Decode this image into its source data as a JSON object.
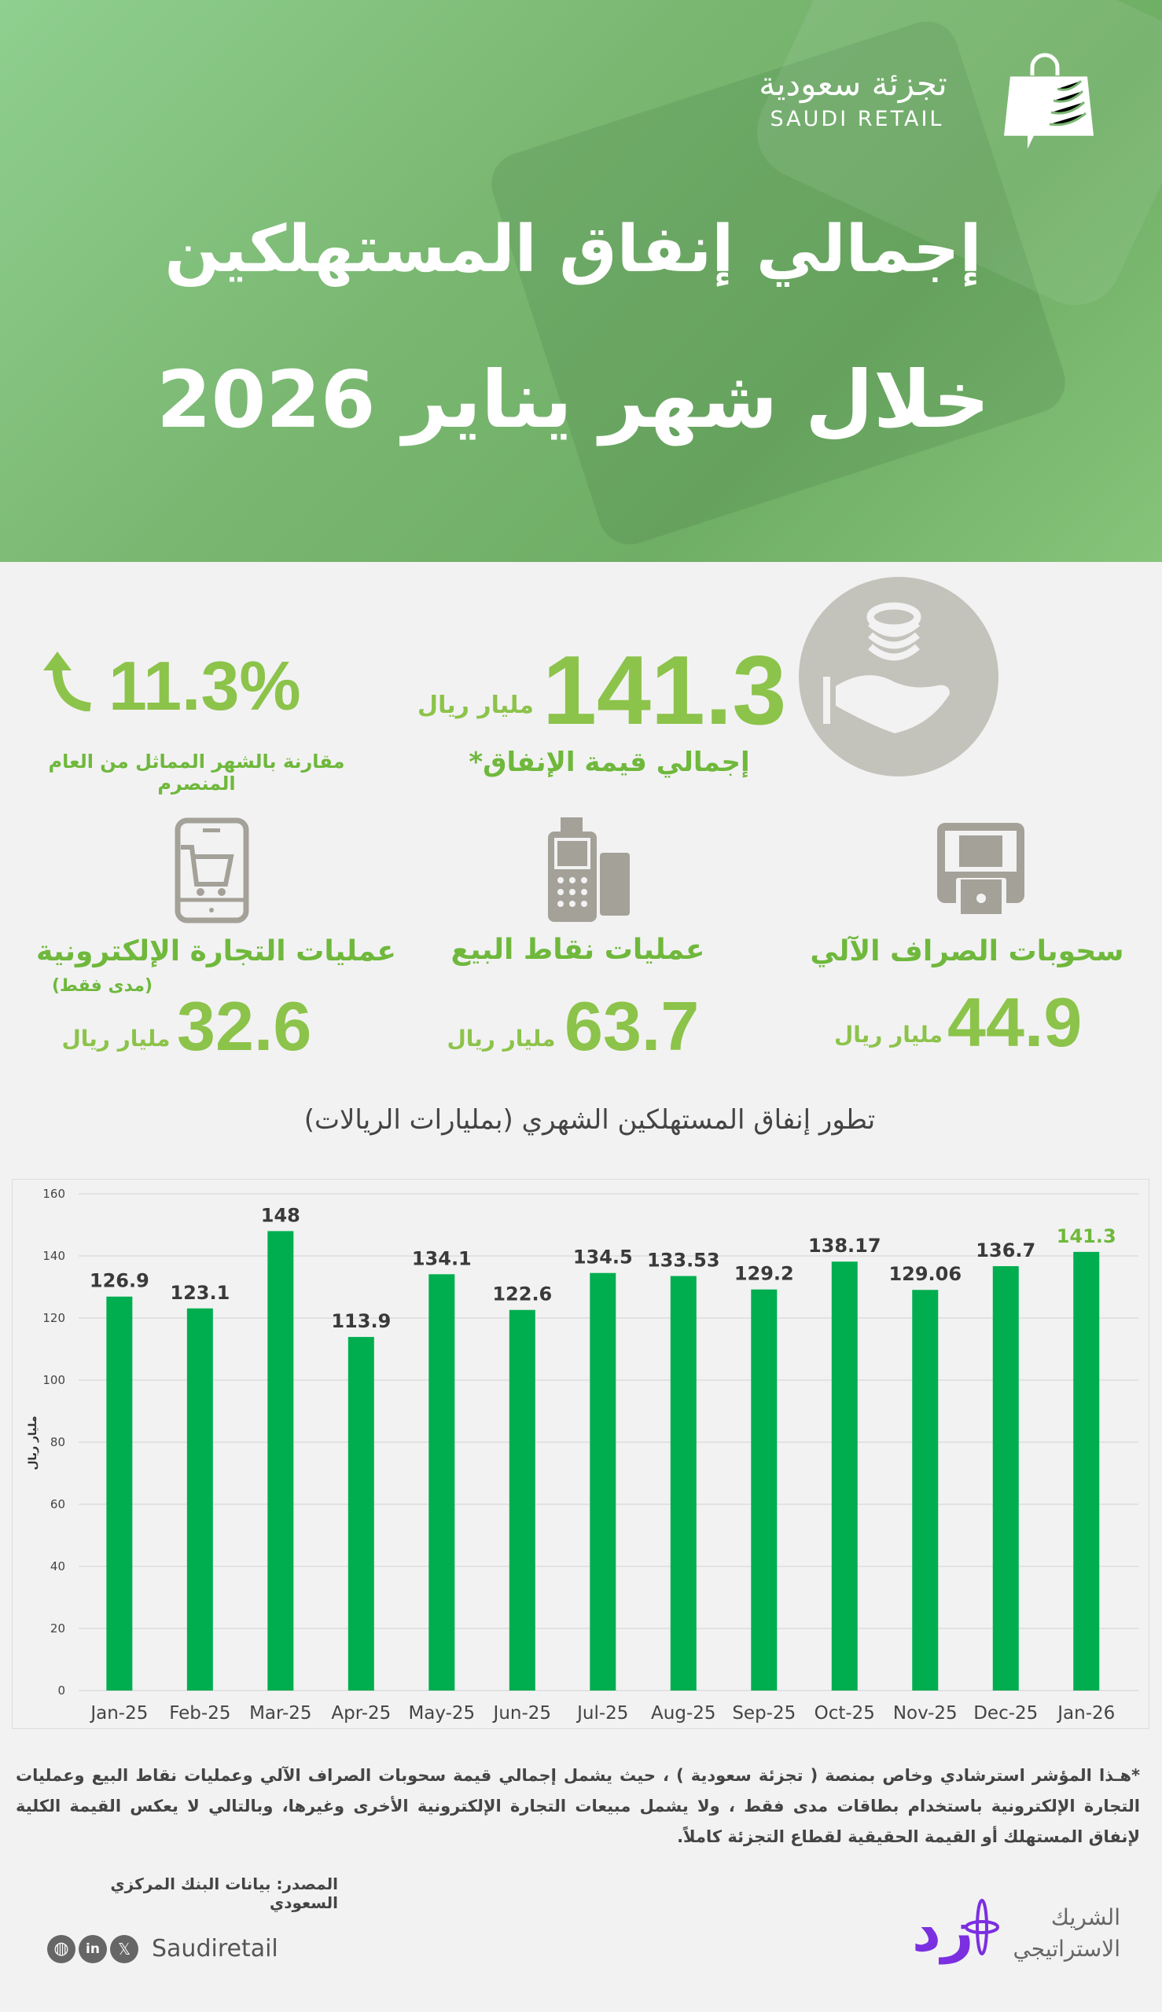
{
  "header": {
    "logo_ar": "تجزئة سعودية",
    "logo_en": "SAUDI RETAIL",
    "title_line1": "إجمالي إنفاق المستهلكين",
    "title_line2": "خلال شهر يناير 2026"
  },
  "total": {
    "value": "141.3",
    "unit": "مليار ريال",
    "label": "إجمالي قيمة الإنفاق*",
    "icon": "hand-coins-icon"
  },
  "growth": {
    "value": "11.3%",
    "label": "مقارنة بالشهر المماثل من العام المنصرم",
    "icon": "arrow-up-icon"
  },
  "categories": [
    {
      "label": "سحوبات الصراف الآلي",
      "value": "44.9",
      "unit": "مليار ريال",
      "note": "",
      "icon": "atm-icon"
    },
    {
      "label": "عمليات نقاط البيع",
      "value": "63.7",
      "unit": "مليار ريال",
      "note": "",
      "icon": "pos-terminal-icon"
    },
    {
      "label": "عمليات التجارة الإلكترونية",
      "value": "32.6",
      "unit": "مليار ريال",
      "note": "(مدى فقط)",
      "icon": "mobile-cart-icon"
    }
  ],
  "chart_data": {
    "type": "bar",
    "title": "تطور إنفاق المستهلكين الشهري (بمليارات الريالات)",
    "ylabel": "مليار ريال",
    "xlabel": "",
    "ylim": [
      0,
      160
    ],
    "yticks": [
      0,
      20,
      40,
      60,
      80,
      100,
      120,
      140,
      160
    ],
    "grid": true,
    "categories": [
      "Jan-25",
      "Feb-25",
      "Mar-25",
      "Apr-25",
      "May-25",
      "Jun-25",
      "Jul-25",
      "Aug-25",
      "Sep-25",
      "Oct-25",
      "Nov-25",
      "Dec-25",
      "Jan-26"
    ],
    "values": [
      126.9,
      123.1,
      148,
      113.9,
      134.1,
      122.6,
      134.5,
      133.53,
      129.2,
      138.17,
      129.06,
      136.7,
      141.3
    ],
    "labels": [
      "126.9",
      "123.1",
      "148",
      "113.9",
      "134.1",
      "122.6",
      "134.5",
      "133.53",
      "129.2",
      "138.17",
      "129.06",
      "136.7",
      "141.3"
    ],
    "bar_color": "#00ae4f",
    "highlight_label_color": "#6fb83c"
  },
  "footer": {
    "footnote": "*هـذا المؤشر استرشادي وخاص بمنصة ( تجزئة سعودية ) ، حيث يشمل إجمالي قيمة سحوبات الصراف الآلي وعمليات نقاط البيع وعمليات التجارة الإلكترونية باستخدام بطاقات مدى فقط ، ولا يشمل مبيعات التجارة الإلكترونية الأخرى وغيرها، وبالتالي لا يعكس القيمة الكلية لإنفاق المستهلك أو القيمة الحقيقية لقطاع التجزئة كاملاً.",
    "source": "المصدر: بيانات البنك المركزي السعودي",
    "handle": "Saudiretail",
    "social_icons": [
      "globe-icon",
      "linkedin-icon",
      "x-icon"
    ],
    "partner_line1": "الشريك",
    "partner_line2": "الاستراتيجي",
    "partner_logo": "زد",
    "partner_color": "#7b2fe0"
  }
}
